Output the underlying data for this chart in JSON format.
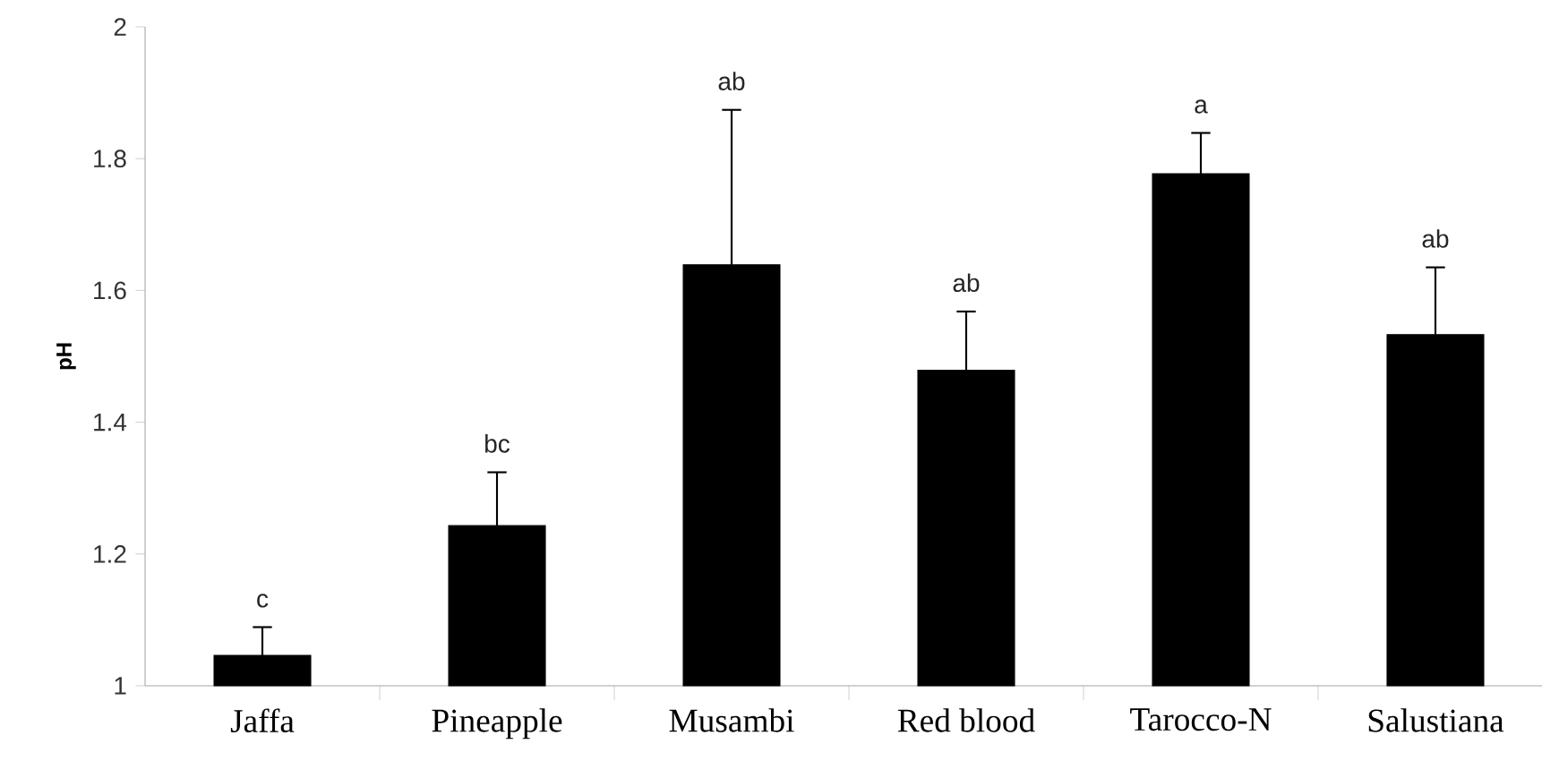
{
  "chart_data": {
    "type": "bar",
    "ylabel": "pH",
    "categories": [
      "Jaffa",
      "Pineapple",
      "Musambi",
      "Red blood",
      "Tarocco-N",
      "Salustiana"
    ],
    "values": [
      1.046,
      1.243,
      1.639,
      1.479,
      1.777,
      1.533
    ],
    "errors": [
      [
        1.046,
        1.089
      ],
      [
        1.243,
        1.324
      ],
      [
        1.639,
        1.874
      ],
      [
        1.479,
        1.568
      ],
      [
        1.777,
        1.839
      ],
      [
        1.533,
        1.635
      ]
    ],
    "color": "#000000",
    "ylim": [
      1,
      2
    ],
    "yticks": [
      1,
      1.2,
      1.4,
      1.6,
      1.8,
      2
    ],
    "grid": false,
    "annotations": [
      {
        "text": "c",
        "x": "Jaffa",
        "y": 1.089
      },
      {
        "text": "bc",
        "x": "Pineapple",
        "y": 1.324
      },
      {
        "text": "ab",
        "x": "Musambi",
        "y": 1.874
      },
      {
        "text": "ab",
        "x": "Red blood",
        "y": 1.568
      },
      {
        "text": "a",
        "x": "Tarocco-N",
        "y": 1.839
      },
      {
        "text": "ab",
        "x": "Salustiana",
        "y": 1.635
      }
    ]
  }
}
